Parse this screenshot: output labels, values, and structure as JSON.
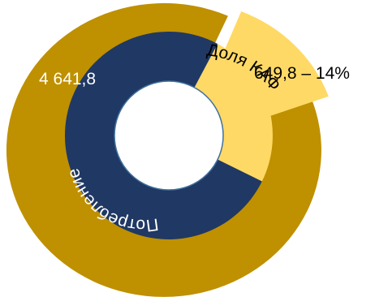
{
  "chart_data": {
    "type": "pie",
    "rings": [
      {
        "ring": "outer",
        "slices": [
          {
            "label": "4 641,8",
            "value": 4641.8,
            "color": "#BF9000"
          },
          {
            "label": "649,8 – 14%",
            "value": 649.8,
            "color": "#FFD966"
          }
        ]
      },
      {
        "ring": "inner",
        "slices": [
          {
            "label": "Потребление",
            "value": 4641.8,
            "color": "#203864"
          },
          {
            "label": "Доля КАФ",
            "value": 649.8,
            "color": "#FFD966"
          }
        ]
      }
    ]
  }
}
